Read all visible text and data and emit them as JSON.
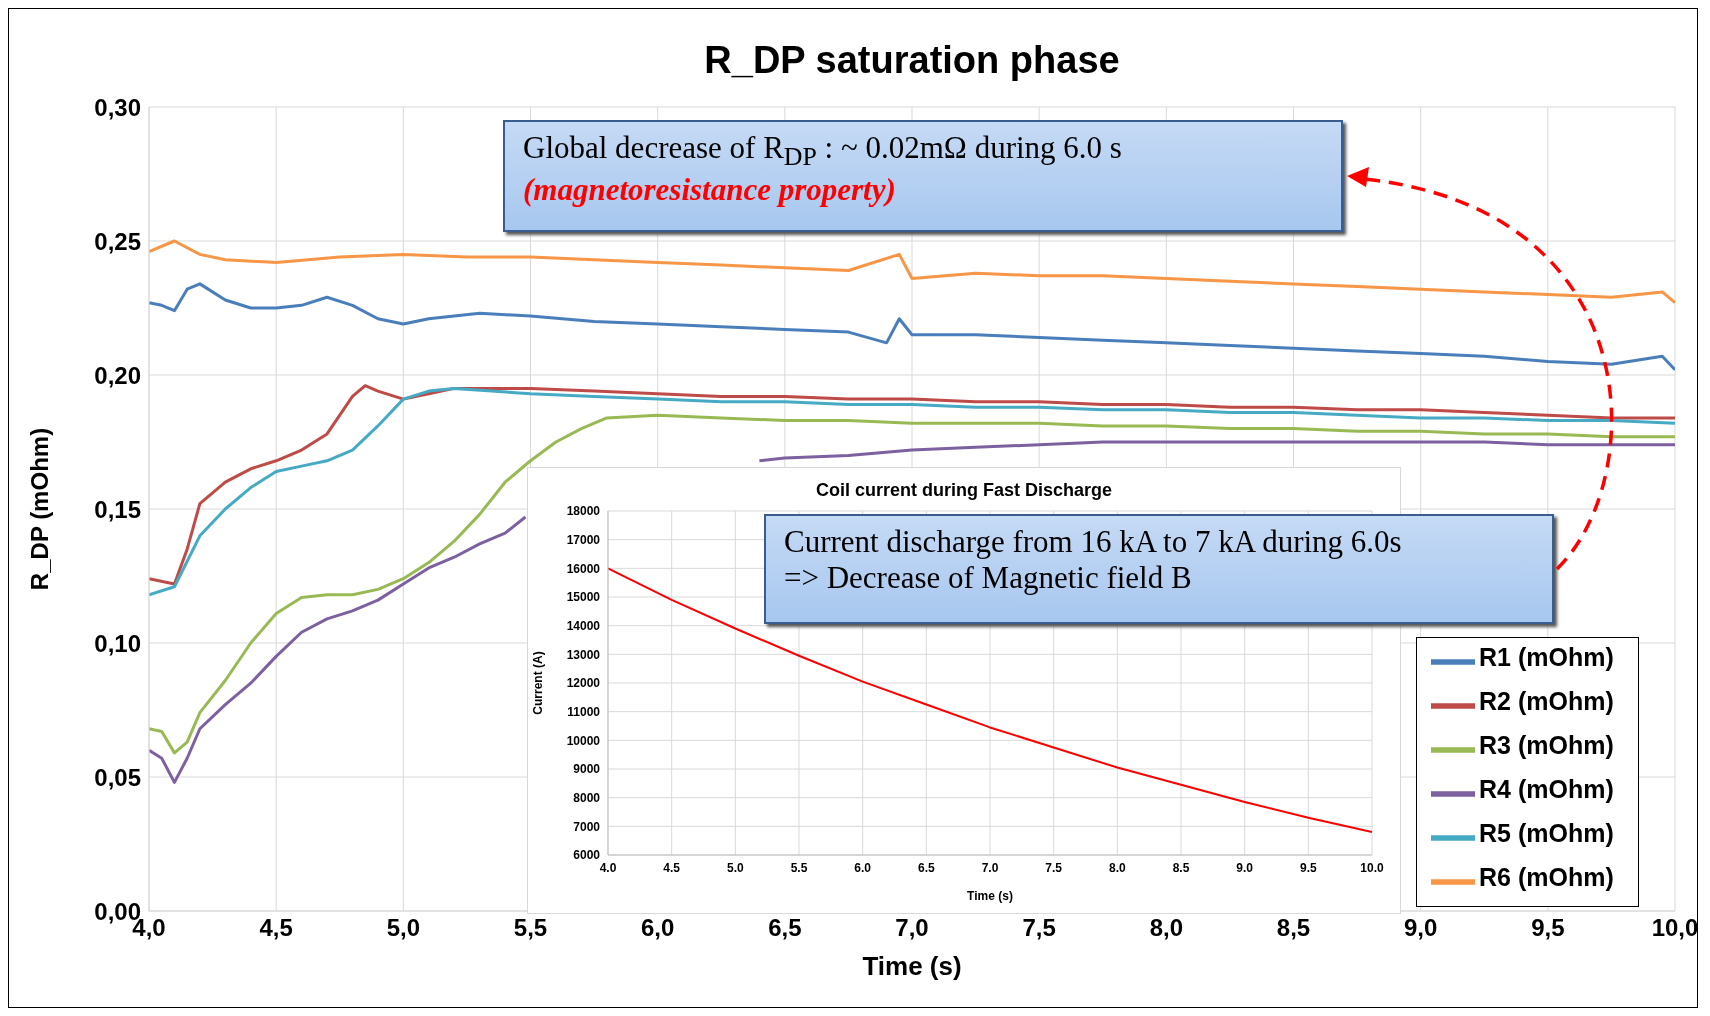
{
  "chart_data": [
    {
      "type": "line",
      "title": "R_DP saturation phase",
      "xlabel": "Time (s)",
      "ylabel": "R_DP (mOhm)",
      "series": [
        {
          "name": "R1 (mOhm)",
          "color": "#4a7ebb",
          "x": [
            4.0,
            4.05,
            4.1,
            4.15,
            4.2,
            4.3,
            4.4,
            4.5,
            4.6,
            4.7,
            4.8,
            4.9,
            5.0,
            5.1,
            5.3,
            5.5,
            5.75,
            6.0,
            6.25,
            6.5,
            6.75,
            6.9,
            6.95,
            7.0,
            7.25,
            7.5,
            7.75,
            8.0,
            8.25,
            8.5,
            8.75,
            9.0,
            9.25,
            9.5,
            9.75,
            9.95,
            10.0
          ],
          "values": [
            0.227,
            0.226,
            0.224,
            0.232,
            0.234,
            0.228,
            0.225,
            0.225,
            0.226,
            0.229,
            0.226,
            0.221,
            0.219,
            0.221,
            0.223,
            0.222,
            0.22,
            0.219,
            0.218,
            0.217,
            0.216,
            0.212,
            0.221,
            0.215,
            0.215,
            0.214,
            0.213,
            0.212,
            0.211,
            0.21,
            0.209,
            0.208,
            0.207,
            0.205,
            0.204,
            0.207,
            0.202
          ]
        },
        {
          "name": "R2 (mOhm)",
          "color": "#be4b48",
          "x": [
            4.0,
            4.1,
            4.15,
            4.2,
            4.3,
            4.4,
            4.5,
            4.6,
            4.7,
            4.8,
            4.85,
            4.9,
            5.0,
            5.1,
            5.2,
            5.5,
            5.75,
            6.0,
            6.25,
            6.5,
            6.75,
            7.0,
            7.25,
            7.5,
            7.75,
            8.0,
            8.25,
            8.5,
            8.75,
            9.0,
            9.25,
            9.5,
            9.75,
            10.0
          ],
          "values": [
            0.124,
            0.122,
            0.135,
            0.152,
            0.16,
            0.165,
            0.168,
            0.172,
            0.178,
            0.192,
            0.196,
            0.194,
            0.191,
            0.193,
            0.195,
            0.195,
            0.194,
            0.193,
            0.192,
            0.192,
            0.191,
            0.191,
            0.19,
            0.19,
            0.189,
            0.189,
            0.188,
            0.188,
            0.187,
            0.187,
            0.186,
            0.185,
            0.184,
            0.184
          ]
        },
        {
          "name": "R3 (mOhm)",
          "color": "#98b954",
          "x": [
            4.0,
            4.05,
            4.1,
            4.15,
            4.2,
            4.3,
            4.4,
            4.5,
            4.6,
            4.7,
            4.8,
            4.9,
            5.0,
            5.1,
            5.2,
            5.3,
            5.4,
            5.5,
            5.6,
            5.7,
            5.8,
            6.0,
            6.25,
            6.5,
            6.75,
            7.0,
            7.25,
            7.5,
            7.75,
            8.0,
            8.25,
            8.5,
            8.75,
            9.0,
            9.25,
            9.5,
            9.75,
            10.0
          ],
          "values": [
            0.068,
            0.067,
            0.059,
            0.063,
            0.074,
            0.086,
            0.1,
            0.111,
            0.117,
            0.118,
            0.118,
            0.12,
            0.124,
            0.13,
            0.138,
            0.148,
            0.16,
            0.168,
            0.175,
            0.18,
            0.184,
            0.185,
            0.184,
            0.183,
            0.183,
            0.182,
            0.182,
            0.182,
            0.181,
            0.181,
            0.18,
            0.18,
            0.179,
            0.179,
            0.178,
            0.178,
            0.177,
            0.177
          ]
        },
        {
          "name": "R4 (mOhm)",
          "color": "#7d60a0",
          "x": [
            4.0,
            4.05,
            4.1,
            4.15,
            4.2,
            4.3,
            4.4,
            4.5,
            4.6,
            4.7,
            4.8,
            4.9,
            5.0,
            5.1,
            5.2,
            5.3,
            5.4,
            5.48,
            5.6,
            6.4,
            6.5,
            6.75,
            7.0,
            7.25,
            7.5,
            7.75,
            8.0,
            8.25,
            8.5,
            8.75,
            9.0,
            9.25,
            9.5,
            9.75,
            10.0
          ],
          "values": [
            0.06,
            0.057,
            0.048,
            0.057,
            0.068,
            0.077,
            0.085,
            0.095,
            0.104,
            0.109,
            0.112,
            0.116,
            0.122,
            0.128,
            0.132,
            0.137,
            0.141,
            0.147,
            null,
            0.168,
            0.169,
            0.17,
            0.172,
            0.173,
            0.174,
            0.175,
            0.175,
            0.175,
            0.175,
            0.175,
            0.175,
            0.175,
            0.174,
            0.174,
            0.174
          ]
        },
        {
          "name": "R5 (mOhm)",
          "color": "#46aac5",
          "x": [
            4.0,
            4.1,
            4.2,
            4.3,
            4.4,
            4.5,
            4.6,
            4.7,
            4.8,
            4.9,
            5.0,
            5.1,
            5.2,
            5.5,
            5.75,
            6.0,
            6.25,
            6.5,
            6.75,
            7.0,
            7.25,
            7.5,
            7.75,
            8.0,
            8.25,
            8.5,
            8.75,
            9.0,
            9.25,
            9.5,
            9.75,
            10.0
          ],
          "values": [
            0.118,
            0.121,
            0.14,
            0.15,
            0.158,
            0.164,
            0.166,
            0.168,
            0.172,
            0.181,
            0.191,
            0.194,
            0.195,
            0.193,
            0.192,
            0.191,
            0.19,
            0.19,
            0.189,
            0.189,
            0.188,
            0.188,
            0.187,
            0.187,
            0.186,
            0.186,
            0.185,
            0.184,
            0.184,
            0.183,
            0.183,
            0.182
          ]
        },
        {
          "name": "R6 (mOhm)",
          "color": "#f79646",
          "x": [
            4.0,
            4.1,
            4.2,
            4.3,
            4.5,
            4.75,
            5.0,
            5.25,
            5.5,
            5.75,
            6.0,
            6.25,
            6.5,
            6.75,
            6.95,
            7.0,
            7.25,
            7.5,
            7.75,
            8.0,
            8.25,
            8.5,
            8.75,
            9.0,
            9.25,
            9.5,
            9.75,
            9.95,
            10.0
          ],
          "values": [
            0.246,
            0.25,
            0.245,
            0.243,
            0.242,
            0.244,
            0.245,
            0.244,
            0.244,
            0.243,
            0.242,
            0.241,
            0.24,
            0.239,
            0.245,
            0.236,
            0.238,
            0.237,
            0.237,
            0.236,
            0.235,
            0.234,
            0.233,
            0.232,
            0.231,
            0.23,
            0.229,
            0.231,
            0.227
          ]
        }
      ],
      "xlim": [
        4.0,
        10.0
      ],
      "ylim": [
        0,
        0.3
      ],
      "xticks": [
        {
          "value": 4.0,
          "label": "4,0"
        },
        {
          "value": 4.5,
          "label": "4,5"
        },
        {
          "value": 5.0,
          "label": "5,0"
        },
        {
          "value": 5.5,
          "label": "5,5"
        },
        {
          "value": 6.0,
          "label": "6,0"
        },
        {
          "value": 6.5,
          "label": "6,5"
        },
        {
          "value": 7.0,
          "label": "7,0"
        },
        {
          "value": 7.5,
          "label": "7,5"
        },
        {
          "value": 8.0,
          "label": "8,0"
        },
        {
          "value": 8.5,
          "label": "8,5"
        },
        {
          "value": 9.0,
          "label": "9,0"
        },
        {
          "value": 9.5,
          "label": "9,5"
        },
        {
          "value": 10.0,
          "label": "10,0"
        }
      ],
      "yticks": [
        {
          "value": 0,
          "label": "0,00"
        },
        {
          "value": 0.05,
          "label": "0,05"
        },
        {
          "value": 0.1,
          "label": "0,10"
        },
        {
          "value": 0.15,
          "label": "0,15"
        },
        {
          "value": 0.2,
          "label": "0,20"
        },
        {
          "value": 0.25,
          "label": "0,25"
        },
        {
          "value": 0.3,
          "label": "0,30"
        }
      ],
      "grid": true,
      "legend": "bottom right",
      "annotations": [
        "Global decrease of R$_{DP}$ : ~ 0.02mΩ during 6.0 s",
        "(magnetoresistance property)",
        "Current discharge from 16 kA to 7 kA during 6.0s",
        "=> Decrease of Magnetic field B"
      ]
    },
    {
      "type": "line",
      "title": "Coil current during Fast Discharge",
      "xlabel": "Time (s)",
      "ylabel": "Current (A)",
      "color": "#ff0000",
      "x": [
        4.0,
        4.5,
        5.0,
        5.5,
        6.0,
        6.5,
        7.0,
        7.5,
        8.0,
        8.5,
        9.0,
        9.5,
        10.0
      ],
      "values": [
        16000,
        14900,
        13900,
        12950,
        12050,
        11250,
        10450,
        9750,
        9050,
        8450,
        7850,
        7300,
        6800
      ],
      "xlim": [
        4.0,
        10.0
      ],
      "ylim": [
        6000,
        18000
      ],
      "xticks": [
        {
          "value": 4.0,
          "label": "4.0"
        },
        {
          "value": 4.5,
          "label": "4.5"
        },
        {
          "value": 5.0,
          "label": "5.0"
        },
        {
          "value": 5.5,
          "label": "5.5"
        },
        {
          "value": 6.0,
          "label": "6.0"
        },
        {
          "value": 6.5,
          "label": "6.5"
        },
        {
          "value": 7.0,
          "label": "7.0"
        },
        {
          "value": 7.5,
          "label": "7.5"
        },
        {
          "value": 8.0,
          "label": "8.0"
        },
        {
          "value": 8.5,
          "label": "8.5"
        },
        {
          "value": 9.0,
          "label": "9.0"
        },
        {
          "value": 9.5,
          "label": "9.5"
        },
        {
          "value": 10.0,
          "label": "10.0"
        }
      ],
      "yticks": [
        6000,
        7000,
        8000,
        9000,
        10000,
        11000,
        12000,
        13000,
        14000,
        15000,
        16000,
        17000,
        18000
      ],
      "grid": true
    }
  ]
}
